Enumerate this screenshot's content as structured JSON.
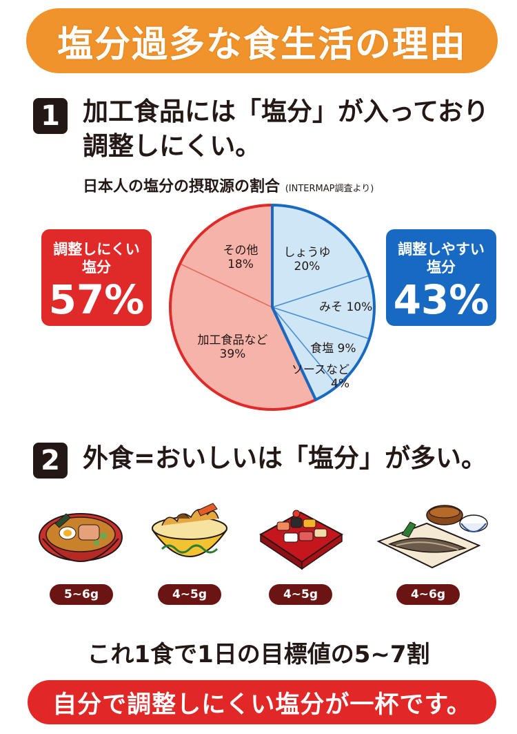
{
  "header": {
    "title": "塩分過多な食生活の理由"
  },
  "section1": {
    "number": "1",
    "line1": "加工食品には「塩分」が入っており",
    "line2": "調整しにくい。"
  },
  "pie_caption": {
    "main": "日本人の塩分の摂取源の割合",
    "source": "(INTERMAP調査より)"
  },
  "left_box": {
    "line1": "調整しにくい",
    "line2": "塩分",
    "percent": "57%"
  },
  "right_box": {
    "line1": "調整しやすい",
    "line2": "塩分",
    "percent": "43%"
  },
  "chart_data": {
    "type": "pie",
    "slices": [
      {
        "label": "しょうゆ",
        "value": 20,
        "text": "20%",
        "group": "easy"
      },
      {
        "label": "みそ",
        "value": 10,
        "text": "10%",
        "group": "easy"
      },
      {
        "label": "食塩",
        "value": 9,
        "text": "9%",
        "group": "easy"
      },
      {
        "label": "ソースなど",
        "value": 4,
        "text": "4%",
        "group": "easy"
      },
      {
        "label": "加工食品など",
        "value": 39,
        "text": "39%",
        "group": "hard"
      },
      {
        "label": "その他",
        "value": 18,
        "text": "18%",
        "group": "hard"
      }
    ],
    "colors": {
      "easy_fill": "#cfe6f7",
      "easy_stroke": "#1769c1",
      "hard_fill": "#f6b3aa",
      "hard_stroke": "#e02929"
    }
  },
  "section2": {
    "number": "2",
    "text": "外食=おいしいは「塩分」が多い。"
  },
  "foods": [
    {
      "name": "ramen-icon",
      "salt": "5~6g"
    },
    {
      "name": "tendon-icon",
      "salt": "4~5g"
    },
    {
      "name": "sushi-icon",
      "salt": "4~5g"
    },
    {
      "name": "grilled-fish-set-icon",
      "salt": "4~6g"
    }
  ],
  "summary": "これ1食で1日の目標値の5~7割",
  "footer": "自分で調整しにくい塩分が一杯です。"
}
